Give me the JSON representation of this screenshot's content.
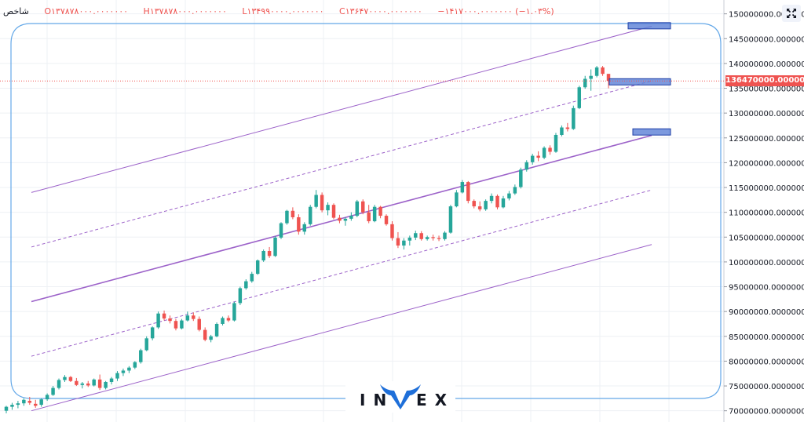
{
  "header": {
    "symbol": "شاخص",
    "open": "O۱۳۷۸۷۸۰۰۰.۰۰۰۰۰۰۰",
    "high": "H۱۳۷۸۷۸۰۰۰.۰۰۰۰۰۰۰",
    "low": "L۱۳۴۹۹۰۰۰۰.۰۰۰۰۰۰۰",
    "close": "C۱۳۶۴۷۰۰۰۰.۰۰۰۰۰۰۰",
    "change": "−۱۴۱۷۰۰۰.۰۰۰۰۰۰۰ (−۱.۰۳%)"
  },
  "logo_text": {
    "left": "IN",
    "right": "EX"
  },
  "colors": {
    "up": "#26a69a",
    "down": "#ef5350",
    "channel": "#9c62c9",
    "box": "#5b7fd6",
    "frame": "#64a8e8"
  },
  "icons": {
    "fullscreen": "expand-arrows-icon"
  },
  "chart_data": {
    "type": "candlestick",
    "title": "",
    "xlabel": "",
    "ylabel": "",
    "ylim": [
      69000000,
      152000000
    ],
    "yticks": [
      "70000000.0000000",
      "75000000.0000000",
      "80000000.0000000",
      "85000000.0000000",
      "90000000.0000000",
      "95000000.0000000",
      "100000000.0000000",
      "105000000.0000000",
      "110000000.0000000",
      "115000000.0000000",
      "120000000.0000000",
      "125000000.0000000",
      "130000000.0000000",
      "135000000.0000000",
      "140000000.0000000",
      "145000000.0000000",
      "150000000.0000000"
    ],
    "last_price": 136470000,
    "last_price_label": "136470000.0000000",
    "candles": [
      [
        70,
        71,
        69.5,
        70.8
      ],
      [
        70.8,
        71.6,
        70.2,
        71.2
      ],
      [
        71.2,
        72,
        70.5,
        71.5
      ],
      [
        71.5,
        72.5,
        71,
        72.2
      ],
      [
        72,
        72.8,
        71.2,
        71.6
      ],
      [
        71.4,
        72.2,
        70.6,
        71.0
      ],
      [
        71.2,
        72.5,
        70.8,
        72.3
      ],
      [
        72.3,
        73.5,
        72,
        73.2
      ],
      [
        73.2,
        75,
        73,
        74.6
      ],
      [
        74.6,
        76.5,
        74.3,
        76.2
      ],
      [
        76.2,
        77.2,
        75.8,
        76.8
      ],
      [
        76.8,
        77,
        75.8,
        76.0
      ],
      [
        76,
        76.6,
        75,
        75.2
      ],
      [
        75.2,
        75.8,
        74.5,
        75.5
      ],
      [
        75.5,
        76,
        74.8,
        75.1
      ],
      [
        75.1,
        76.5,
        74.9,
        76.3
      ],
      [
        76.3,
        77.3,
        74.2,
        74.6
      ],
      [
        74.6,
        76,
        74.3,
        75.8
      ],
      [
        75.8,
        76.8,
        75.3,
        76.5
      ],
      [
        76.5,
        78,
        76,
        77.6
      ],
      [
        77.6,
        78.5,
        77,
        78.1
      ],
      [
        78.1,
        79,
        77.6,
        78.7
      ],
      [
        78.7,
        80,
        78.4,
        79.8
      ],
      [
        79.8,
        82.5,
        79.5,
        82.2
      ],
      [
        82.2,
        85,
        82,
        84.6
      ],
      [
        84.6,
        87,
        84.2,
        86.8
      ],
      [
        86.8,
        90,
        86.5,
        89.6
      ],
      [
        89.6,
        90.2,
        88.2,
        88.6
      ],
      [
        88.6,
        89.2,
        87.6,
        88.1
      ],
      [
        88.1,
        88.5,
        86.2,
        86.6
      ],
      [
        86.6,
        88.5,
        86.4,
        88.2
      ],
      [
        88.2,
        90,
        88,
        89.2
      ],
      [
        89.2,
        89.8,
        88.1,
        88.5
      ],
      [
        88.5,
        89,
        86,
        86.3
      ],
      [
        86.3,
        86.8,
        84,
        84.3
      ],
      [
        84.3,
        85.3,
        83.8,
        85.0
      ],
      [
        85,
        87.8,
        84.8,
        87.5
      ],
      [
        87.5,
        89,
        87.2,
        88.7
      ],
      [
        88.7,
        89.2,
        87.9,
        88.2
      ],
      [
        88.2,
        92,
        88,
        91.7
      ],
      [
        91.7,
        95,
        91.3,
        94.7
      ],
      [
        94.7,
        96.5,
        94.4,
        96.1
      ],
      [
        96.1,
        98,
        95.8,
        97.6
      ],
      [
        97.6,
        100.5,
        97.4,
        100.3
      ],
      [
        100.3,
        102.5,
        100,
        102.2
      ],
      [
        102.2,
        103,
        100.8,
        101.2
      ],
      [
        101.2,
        105.2,
        101,
        104.9
      ],
      [
        104.9,
        108,
        104.6,
        107.8
      ],
      [
        107.8,
        110.5,
        107.5,
        110.3
      ],
      [
        110.3,
        111,
        108.6,
        109
      ],
      [
        109,
        109.6,
        105.5,
        106.1
      ],
      [
        106.1,
        108,
        105.5,
        107.6
      ],
      [
        107.6,
        111.5,
        107.3,
        111.1
      ],
      [
        111.1,
        114.5,
        110.8,
        113.5
      ],
      [
        113.5,
        114,
        110,
        110.4
      ],
      [
        110.4,
        112,
        109.4,
        111.5
      ],
      [
        111.5,
        111.8,
        108.6,
        108.9
      ],
      [
        108.9,
        109.5,
        107.8,
        108.3
      ],
      [
        108.3,
        109,
        107.3,
        108.7
      ],
      [
        108.7,
        110,
        108.3,
        109.3
      ],
      [
        109.3,
        112.5,
        109,
        112.2
      ],
      [
        112.2,
        112.6,
        109.6,
        110
      ],
      [
        110,
        111.5,
        107.8,
        108.2
      ],
      [
        108.2,
        111.5,
        108,
        111.1
      ],
      [
        111.1,
        111.3,
        108.8,
        109.3
      ],
      [
        109.3,
        109.6,
        107.3,
        107.6
      ],
      [
        107.6,
        108.2,
        104.3,
        104.8
      ],
      [
        104.8,
        106,
        102.8,
        103.3
      ],
      [
        103.3,
        104.8,
        102.5,
        104.3
      ],
      [
        104.3,
        105.3,
        103.3,
        104.9
      ],
      [
        104.9,
        106.3,
        104.4,
        105.8
      ],
      [
        105.8,
        106.2,
        104.3,
        104.6
      ],
      [
        104.6,
        105.3,
        104.3,
        105
      ],
      [
        105,
        105.5,
        104.3,
        104.8
      ],
      [
        104.8,
        105.3,
        104.2,
        104.6
      ],
      [
        104.6,
        106.2,
        104.3,
        105.9
      ],
      [
        105.9,
        111.5,
        105.7,
        111.2
      ],
      [
        111.2,
        114.5,
        111,
        114
      ],
      [
        114,
        116.5,
        113.8,
        116.1
      ],
      [
        116.1,
        116.3,
        111.8,
        112.3
      ],
      [
        112.3,
        112.6,
        110.8,
        111.2
      ],
      [
        111.2,
        112.2,
        110.2,
        110.6
      ],
      [
        110.6,
        112.6,
        110.3,
        112.3
      ],
      [
        112.3,
        113.8,
        111.8,
        113.3
      ],
      [
        113.3,
        113.6,
        110.6,
        111
      ],
      [
        111,
        113.3,
        110.8,
        112.8
      ],
      [
        112.8,
        114.3,
        112.4,
        113.8
      ],
      [
        113.8,
        115.6,
        113.5,
        115.1
      ],
      [
        115.1,
        119,
        114.8,
        118.6
      ],
      [
        118.6,
        120.5,
        118.2,
        120.1
      ],
      [
        120.1,
        121.8,
        119.6,
        121.4
      ],
      [
        121.4,
        122.3,
        120.3,
        121
      ],
      [
        121,
        123.3,
        120.7,
        123
      ],
      [
        123,
        123.5,
        121.6,
        122.2
      ],
      [
        122.2,
        126,
        122,
        125.6
      ],
      [
        125.6,
        127.5,
        125.3,
        127.1
      ],
      [
        127.1,
        128,
        126.3,
        126.8
      ],
      [
        126.8,
        131.5,
        126.6,
        131
      ],
      [
        131,
        135.5,
        130.8,
        135.2
      ],
      [
        135.2,
        137.5,
        134.9,
        136.9
      ],
      [
        136.9,
        138.8,
        134.5,
        137.5
      ],
      [
        137.5,
        139.5,
        137.2,
        139.2
      ],
      [
        139.2,
        139.5,
        137.5,
        137.9
      ],
      [
        137.9,
        137.9,
        134.99,
        136.47
      ]
    ]
  }
}
